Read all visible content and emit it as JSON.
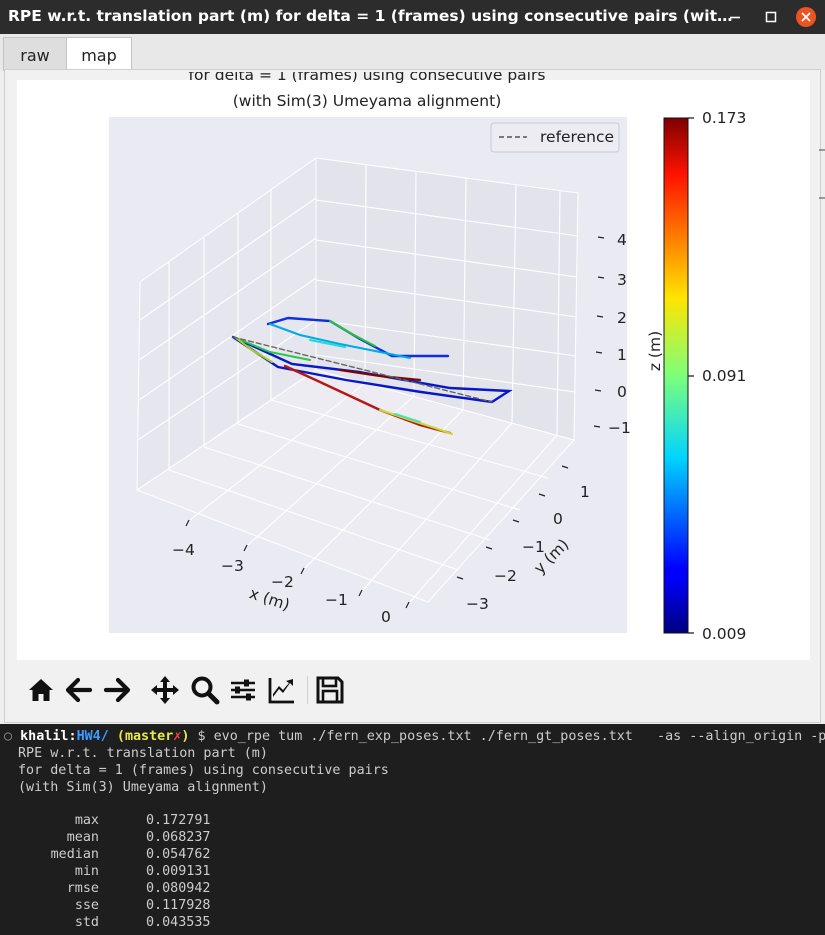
{
  "window": {
    "title": "RPE w.r.t. translation part (m) for delta = 1 (frames) using consecutive pairs (wit…",
    "controls": {
      "minimize": "–",
      "maximize": "□",
      "close": "×"
    }
  },
  "tabs": [
    {
      "label": "raw",
      "active": false
    },
    {
      "label": "map",
      "active": true
    }
  ],
  "plot": {
    "title_line1": "for delta = 1 (frames) using consecutive pairs",
    "title_line2": "(with Sim(3) Umeyama alignment)",
    "legend_label": "reference",
    "x_label": "x (m)",
    "y_label": "y (m)",
    "z_label": "z (m)",
    "x_ticks": [
      "−4",
      "−3",
      "−2",
      "−1",
      "0"
    ],
    "y_ticks": [
      "1",
      "0",
      "−1",
      "−2",
      "−3"
    ],
    "z_ticks": [
      "4",
      "3",
      "2",
      "1",
      "0",
      "−1"
    ],
    "colorbar": {
      "colormap": "jet",
      "max_label": "0.173",
      "mid_label": "0.091",
      "min_label": "0.009"
    },
    "colors": {
      "pane": "#eaeaf2",
      "reference": "#666666"
    }
  },
  "toolbar": {
    "buttons": [
      {
        "name": "home-icon"
      },
      {
        "name": "back-arrow-icon"
      },
      {
        "name": "forward-arrow-icon"
      },
      {
        "name": "pan-icon"
      },
      {
        "name": "zoom-icon"
      },
      {
        "name": "subplots-config-icon"
      },
      {
        "name": "edit-axes-icon"
      },
      {
        "name": "save-icon"
      }
    ]
  },
  "terminal": {
    "prompt": {
      "circle": "○",
      "user": "khalil",
      "colon": ":",
      "dir": "HW4/",
      "branch_open": " (",
      "branch": "master",
      "dirty": "✗",
      "branch_close": ")",
      "dollar": " $ ",
      "command": "evo_rpe tum ./fern_exp_poses.txt ./fern_gt_poses.txt   -as --align_origin -p"
    },
    "header_lines": [
      "RPE w.r.t. translation part (m)",
      "for delta = 1 (frames) using consecutive pairs",
      "(with Sim(3) Umeyama alignment)"
    ],
    "stats": [
      {
        "name": "max",
        "value": "0.172791"
      },
      {
        "name": "mean",
        "value": "0.068237"
      },
      {
        "name": "median",
        "value": "0.054762"
      },
      {
        "name": "min",
        "value": "0.009131"
      },
      {
        "name": "rmse",
        "value": "0.080942"
      },
      {
        "name": "sse",
        "value": "0.117928"
      },
      {
        "name": "std",
        "value": "0.043535"
      }
    ]
  }
}
